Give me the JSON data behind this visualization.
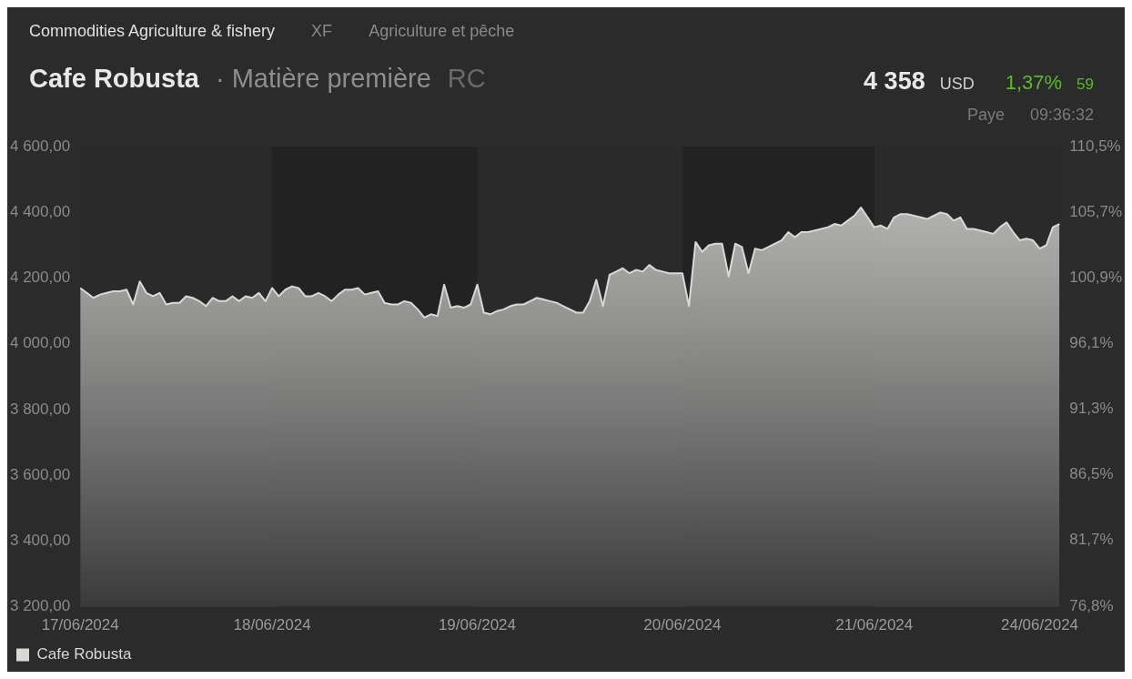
{
  "chart_data": {
    "type": "area",
    "title": "Cafe Robusta",
    "annotations": [
      "Commodities Agriculture & fishery",
      "XF",
      "Agriculture et pêche",
      "· Matière première",
      "RC",
      "4 358",
      "USD",
      "1,37%",
      "59",
      "Paye",
      "09:36:32"
    ],
    "categories": [
      "17/06/2024",
      null,
      null,
      null,
      null,
      null,
      null,
      null,
      null,
      null,
      null,
      null,
      null,
      null,
      null,
      null,
      null,
      null,
      null,
      null,
      null,
      null,
      null,
      null,
      null,
      null,
      null,
      null,
      null,
      "18/06/2024",
      null,
      null,
      null,
      null,
      null,
      null,
      null,
      null,
      null,
      null,
      null,
      null,
      null,
      null,
      null,
      null,
      null,
      null,
      null,
      null,
      null,
      null,
      null,
      null,
      null,
      null,
      null,
      null,
      null,
      null,
      "19/06/2024",
      null,
      null,
      null,
      null,
      null,
      null,
      null,
      null,
      null,
      null,
      null,
      null,
      null,
      null,
      null,
      null,
      null,
      null,
      null,
      null,
      null,
      null,
      null,
      null,
      null,
      null,
      null,
      null,
      null,
      null,
      "20/06/2024",
      null,
      null,
      null,
      null,
      null,
      null,
      null,
      null,
      null,
      null,
      null,
      null,
      null,
      null,
      null,
      null,
      null,
      null,
      null,
      null,
      null,
      null,
      null,
      null,
      null,
      null,
      null,
      null,
      "21/06/2024",
      null,
      null,
      null,
      null,
      null,
      null,
      null,
      null,
      null,
      null,
      null,
      null,
      null,
      null,
      null,
      null,
      null,
      null,
      null,
      null,
      null,
      null,
      null,
      null,
      "24/06/2024",
      null,
      null,
      null
    ],
    "series": [
      {
        "name": "Cafe Robusta",
        "color": "#d8d8d6",
        "values": [
          4170,
          4155,
          4140,
          4150,
          4155,
          4160,
          4160,
          4165,
          4120,
          4190,
          4155,
          4145,
          4155,
          4120,
          4125,
          4125,
          4145,
          4140,
          4130,
          4115,
          4140,
          4130,
          4130,
          4145,
          4130,
          4145,
          4140,
          4155,
          4130,
          4170,
          4145,
          4165,
          4175,
          4170,
          4145,
          4145,
          4155,
          4145,
          4130,
          4150,
          4165,
          4165,
          4170,
          4150,
          4155,
          4160,
          4125,
          4120,
          4120,
          4130,
          4125,
          4105,
          4080,
          4090,
          4085,
          4180,
          4110,
          4115,
          4110,
          4120,
          4180,
          4095,
          4090,
          4100,
          4105,
          4115,
          4120,
          4120,
          4130,
          4140,
          4135,
          4130,
          4125,
          4115,
          4105,
          4095,
          4095,
          4130,
          4195,
          4115,
          4210,
          4220,
          4230,
          4215,
          4225,
          4220,
          4240,
          4225,
          4220,
          4215,
          4215,
          4215,
          4115,
          4310,
          4280,
          4300,
          4305,
          4305,
          4205,
          4305,
          4295,
          4215,
          4290,
          4285,
          4295,
          4305,
          4315,
          4340,
          4325,
          4340,
          4340,
          4345,
          4350,
          4355,
          4365,
          4360,
          4375,
          4390,
          4415,
          4385,
          4355,
          4360,
          4350,
          4385,
          4395,
          4395,
          4390,
          4385,
          4380,
          4390,
          4400,
          4395,
          4375,
          4385,
          4350,
          4350,
          4345,
          4340,
          4335,
          4355,
          4370,
          4340,
          4315,
          4320,
          4315,
          4290,
          4300,
          4355,
          4365
        ]
      }
    ],
    "ylim": [
      3200,
      4600
    ],
    "yticks": [
      {
        "value": 3200,
        "label": "3 200,00"
      },
      {
        "value": 3400,
        "label": "3 400,00"
      },
      {
        "value": 3600,
        "label": "3 600,00"
      },
      {
        "value": 3800,
        "label": "3 800,00"
      },
      {
        "value": 4000,
        "label": "4 000,00"
      },
      {
        "value": 4200,
        "label": "4 200,00"
      },
      {
        "value": 4400,
        "label": "4 400,00"
      },
      {
        "value": 4600,
        "label": "4 600,00"
      }
    ],
    "y2lim": [
      76.8,
      110.5
    ],
    "y2ticks": [
      {
        "value": 76.8,
        "label": "76,8%"
      },
      {
        "value": 81.7,
        "label": "81,7%"
      },
      {
        "value": 86.5,
        "label": "86,5%"
      },
      {
        "value": 91.3,
        "label": "91,3%"
      },
      {
        "value": 96.1,
        "label": "96,1%"
      },
      {
        "value": 100.9,
        "label": "100,9%"
      },
      {
        "value": 105.7,
        "label": "105,7%"
      },
      {
        "value": 110.5,
        "label": "110,5%"
      }
    ],
    "bands": [
      {
        "axis": "x",
        "from": "18/06/2024",
        "to": "19/06/2024",
        "color": "#222222"
      },
      {
        "axis": "x",
        "from": "20/06/2024",
        "to": "21/06/2024",
        "color": "#222222"
      }
    ],
    "grid": false,
    "legend": "bottom left"
  }
}
